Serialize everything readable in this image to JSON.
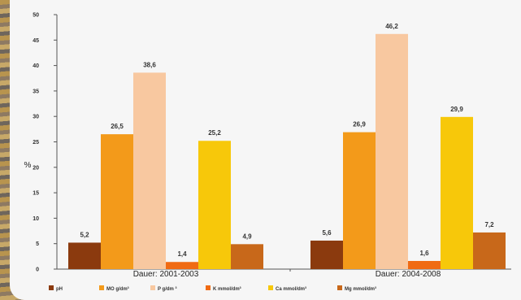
{
  "chart_data": {
    "type": "bar",
    "ylabel": "%",
    "ylim": [
      0,
      50
    ],
    "yticks": [
      "0",
      "5",
      "10",
      "15",
      "20",
      "25",
      "30",
      "35",
      "40",
      "45",
      "50"
    ],
    "categories": [
      "Dauer: 2001-2003",
      "Dauer: 2004-2008"
    ],
    "series": [
      {
        "name": "pH",
        "color": "#8b3a0e",
        "values": [
          5.2,
          5.6
        ],
        "labels": [
          "5,2",
          "5,6"
        ]
      },
      {
        "name": "MO g/dm³",
        "color": "#f39a1a",
        "values": [
          26.5,
          26.9
        ],
        "labels": [
          "26,5",
          "26,9"
        ]
      },
      {
        "name": "P g/dm ³",
        "color": "#f8c8a0",
        "values": [
          38.6,
          46.2
        ],
        "labels": [
          "38,6",
          "46,2"
        ]
      },
      {
        "name": "K mmol/dm³",
        "color": "#f06b14",
        "values": [
          1.4,
          1.6
        ],
        "labels": [
          "1,4",
          "1,6"
        ]
      },
      {
        "name": "Ca mmol/dm³",
        "color": "#f7c80a",
        "values": [
          25.2,
          29.9
        ],
        "labels": [
          "25,2",
          "29,9"
        ]
      },
      {
        "name": "Mg mmol/dm³",
        "color": "#c8681a",
        "values": [
          4.9,
          7.2
        ],
        "labels": [
          "4,9",
          "7,2"
        ]
      }
    ],
    "legend_position": "bottom",
    "grid": false
  }
}
